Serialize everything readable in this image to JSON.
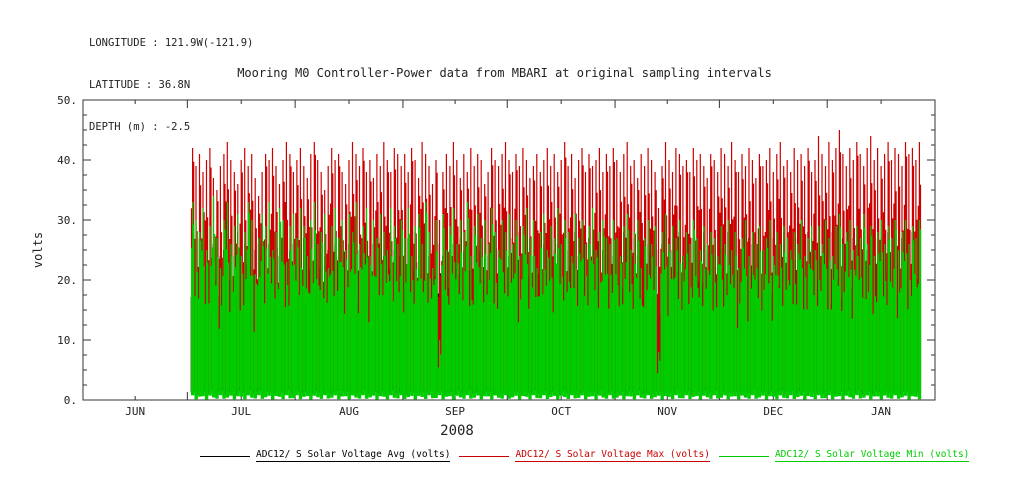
{
  "header": {
    "longitude": "LONGITUDE : 121.9W(-121.9)",
    "latitude": "LATITUDE : 36.8N",
    "depth": "DEPTH (m) : -2.5"
  },
  "chart_data": {
    "type": "line",
    "title": "Mooring M0 Controller-Power data from MBARI at original sampling intervals",
    "ylabel": "volts",
    "year_label": "2008",
    "ylim": [
      0,
      50
    ],
    "ytick_values": [
      0,
      10,
      20,
      30,
      40,
      50
    ],
    "yticks": [
      "0.",
      "10.",
      "20.",
      "30.",
      "40.",
      "50."
    ],
    "x_months": [
      "JUN",
      "JUL",
      "AUG",
      "SEP",
      "OCT",
      "NOV",
      "DEC",
      "JAN"
    ],
    "month_boundaries": [
      0,
      30,
      61,
      92,
      122,
      153,
      183,
      214,
      245
    ],
    "day_range": [
      0,
      245
    ],
    "data_start_day": 31,
    "grid": false,
    "legend_position": "bottom",
    "series": [
      {
        "name": "ADC12/ S Solar Voltage Avg (volts)",
        "color": "#000000",
        "trough_base": 0.9,
        "daily_peaks": [
          26,
          24,
          27,
          25,
          28,
          23,
          26,
          27,
          24,
          25,
          27,
          26,
          24,
          28,
          25,
          26,
          23,
          27,
          25,
          26,
          28,
          24,
          26,
          25,
          27,
          24,
          26,
          28,
          25,
          26,
          26,
          24,
          27,
          25,
          28,
          23,
          26,
          27,
          24,
          25,
          27,
          26,
          24,
          28,
          25,
          26,
          23,
          27,
          25,
          26,
          28,
          24,
          26,
          25,
          27,
          24,
          26,
          28,
          25,
          26,
          26,
          24,
          27,
          25,
          28,
          23,
          26,
          27,
          24,
          25,
          27,
          26,
          24,
          28,
          25,
          26,
          23,
          27,
          25,
          26,
          28,
          24,
          26,
          25,
          27,
          24,
          26,
          28,
          25,
          26,
          26,
          24,
          27,
          25,
          28,
          23,
          26,
          27,
          24,
          25,
          27,
          26,
          24,
          28,
          25,
          26,
          23,
          27,
          25,
          26,
          28,
          24,
          26,
          25,
          27,
          24,
          26,
          28,
          25,
          26,
          26,
          24,
          27,
          25,
          28,
          23,
          26,
          27,
          24,
          25,
          27,
          26,
          24,
          28,
          25,
          26,
          23,
          27,
          25,
          26,
          28,
          24,
          26,
          25,
          27,
          24,
          26,
          28,
          25,
          26,
          26,
          24,
          27,
          25,
          28,
          23,
          26,
          27,
          24,
          25,
          27,
          26,
          24,
          28,
          25,
          26,
          23,
          27,
          25,
          26,
          28,
          24,
          26,
          25,
          27,
          24,
          26,
          28,
          25,
          26,
          26,
          24,
          27,
          25,
          28,
          23,
          26,
          27,
          24,
          25,
          27,
          26,
          24,
          28,
          25,
          26,
          23,
          27,
          25,
          26,
          28,
          24,
          26,
          25,
          27,
          24,
          26,
          28,
          25,
          26
        ]
      },
      {
        "name": "ADC12/ S Solar Voltage Max (volts)",
        "color": "#cc0000",
        "trough_base": 1.5,
        "daily_peaks": [
          42,
          39,
          41,
          38,
          40,
          42,
          37,
          35,
          39,
          41,
          43,
          40,
          38,
          36,
          40,
          42,
          39,
          41,
          37,
          34,
          38,
          41,
          40,
          42,
          39,
          36,
          40,
          43,
          41,
          38,
          40,
          42,
          39,
          37,
          41,
          43,
          40,
          38,
          35,
          39,
          42,
          40,
          41,
          38,
          36,
          40,
          43,
          41,
          39,
          42,
          38,
          40,
          37,
          41,
          39,
          43,
          40,
          38,
          42,
          41,
          39,
          41,
          38,
          42,
          40,
          37,
          43,
          41,
          39,
          36,
          40,
          30,
          38,
          41,
          39,
          43,
          40,
          37,
          41,
          38,
          42,
          39,
          41,
          40,
          36,
          38,
          42,
          40,
          39,
          41,
          43,
          40,
          38,
          41,
          39,
          42,
          40,
          37,
          39,
          41,
          38,
          40,
          42,
          39,
          41,
          38,
          40,
          43,
          39,
          41,
          37,
          40,
          42,
          38,
          41,
          39,
          40,
          42,
          38,
          41,
          39,
          42,
          40,
          38,
          41,
          43,
          39,
          40,
          37,
          41,
          39,
          42,
          40,
          38,
          32,
          39,
          43,
          40,
          38,
          42,
          41,
          39,
          40,
          38,
          42,
          40,
          41,
          39,
          37,
          41,
          40,
          38,
          42,
          41,
          39,
          43,
          40,
          38,
          41,
          39,
          42,
          40,
          37,
          41,
          39,
          40,
          42,
          38,
          41,
          43,
          39,
          40,
          38,
          42,
          40,
          41,
          39,
          42,
          38,
          40,
          44,
          41,
          39,
          43,
          40,
          42,
          45,
          41,
          39,
          42,
          40,
          43,
          41,
          39,
          42,
          44,
          40,
          42,
          39,
          41,
          43,
          40,
          42,
          41,
          39,
          43,
          41,
          42,
          40,
          43
        ]
      },
      {
        "name": "ADC12/ S Solar Voltage Min (volts)",
        "color": "#00cc00",
        "trough_base": 0.1,
        "daily_peaks": [
          33,
          30,
          28,
          32,
          25,
          29,
          34,
          27,
          22,
          30,
          33,
          26,
          29,
          31,
          24,
          28,
          33,
          30,
          21,
          27,
          31,
          29,
          33,
          25,
          28,
          32,
          30,
          23,
          29,
          31,
          27,
          32,
          29,
          24,
          30,
          33,
          26,
          28,
          31,
          22,
          29,
          32,
          27,
          30,
          25,
          31,
          28,
          33,
          26,
          29,
          32,
          24,
          30,
          27,
          31,
          28,
          25,
          32,
          29,
          26,
          30,
          27,
          32,
          24,
          29,
          31,
          26,
          33,
          28,
          22,
          30,
          10,
          31,
          25,
          29,
          32,
          26,
          30,
          28,
          33,
          24,
          29,
          31,
          27,
          30,
          26,
          32,
          28,
          25,
          30,
          28,
          31,
          26,
          30,
          24,
          29,
          32,
          27,
          30,
          22,
          28,
          31,
          25,
          29,
          27,
          32,
          26,
          30,
          28,
          24,
          31,
          27,
          30,
          26,
          29,
          32,
          25,
          28,
          30,
          27,
          26,
          30,
          27,
          24,
          29,
          31,
          25,
          28,
          30,
          22,
          27,
          30,
          26,
          29,
          8,
          28,
          31,
          26,
          29,
          27,
          30,
          24,
          28,
          26,
          30,
          27,
          25,
          29,
          26,
          28,
          27,
          24,
          29,
          26,
          30,
          25,
          28,
          22,
          27,
          30,
          24,
          28,
          26,
          29,
          25,
          27,
          30,
          24,
          28,
          26,
          29,
          27,
          25,
          28,
          26,
          30,
          24,
          27,
          29,
          25,
          29,
          26,
          30,
          27,
          24,
          29,
          31,
          26,
          28,
          30,
          25,
          29,
          27,
          31,
          26,
          29,
          24,
          28,
          30,
          26,
          29,
          27,
          30,
          25,
          28,
          30,
          26,
          29,
          27,
          30
        ]
      }
    ]
  }
}
